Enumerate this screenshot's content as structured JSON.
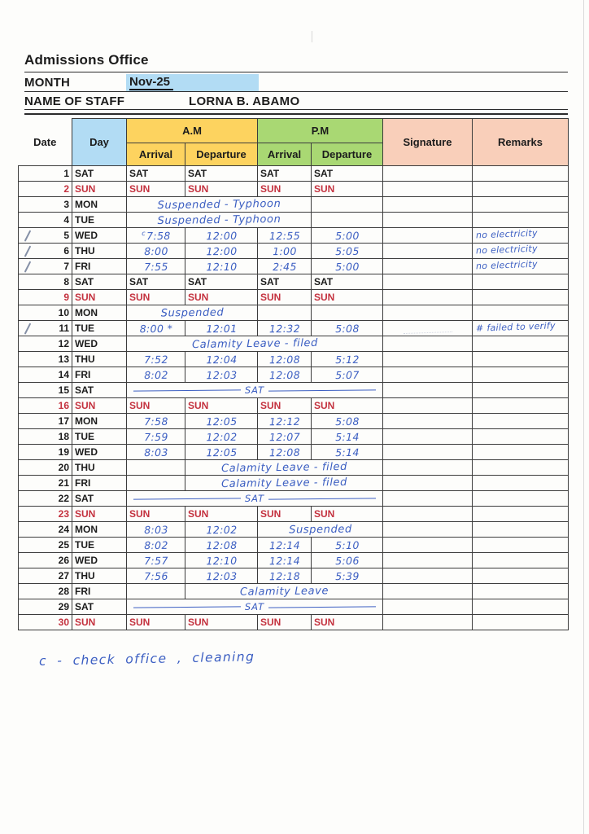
{
  "page": {
    "title": "Admissions Office",
    "month_label": "MONTH",
    "month_value": "Nov-25",
    "staff_label": "NAME OF STAFF",
    "staff_value": "LORNA B. ABAMO",
    "footer_note": "c - check office , cleaning"
  },
  "colors": {
    "highlight_blue": "#b2dcf4",
    "am_yellow": "#fdd35f",
    "pm_green": "#a9d873",
    "salmon": "#f9cfba",
    "sun_red": "#c4323f",
    "pen_blue": "#3b5ec2"
  },
  "table": {
    "headers": {
      "date": "Date",
      "day": "Day",
      "am": "A.M",
      "pm": "P.M",
      "arrival": "Arrival",
      "departure": "Departure",
      "signature": "Signature",
      "remarks": "Remarks"
    },
    "rows": [
      {
        "date": "1",
        "day": "SAT",
        "cells": [
          {
            "t": "SAT",
            "k": "printed"
          },
          {
            "t": "SAT",
            "k": "printed"
          },
          {
            "t": "SAT",
            "k": "printed"
          },
          {
            "t": "SAT",
            "k": "printed"
          }
        ]
      },
      {
        "date": "2",
        "day": "SUN",
        "weekend": true,
        "cells": [
          {
            "t": "SUN",
            "k": "printed"
          },
          {
            "t": "SUN",
            "k": "printed"
          },
          {
            "t": "SUN",
            "k": "printed"
          },
          {
            "t": "SUN",
            "k": "printed"
          }
        ]
      },
      {
        "date": "3",
        "day": "MON",
        "cells": [
          {
            "t": "Suspended - Typhoon",
            "k": "note",
            "span": 3
          },
          {
            "t": "",
            "k": "empty"
          }
        ]
      },
      {
        "date": "4",
        "day": "TUE",
        "cells": [
          {
            "t": "Suspended - Typhoon",
            "k": "note",
            "span": 3
          },
          {
            "t": "",
            "k": "empty"
          }
        ]
      },
      {
        "date": "5",
        "day": "WED",
        "check": true,
        "cells": [
          {
            "t": "7:58",
            "k": "hand",
            "pre": "c"
          },
          {
            "t": "12:00",
            "k": "hand"
          },
          {
            "t": "12:55",
            "k": "hand"
          },
          {
            "t": "5:00",
            "k": "hand"
          }
        ],
        "remark": "no electricity"
      },
      {
        "date": "6",
        "day": "THU",
        "check": true,
        "cells": [
          {
            "t": "8:00",
            "k": "hand"
          },
          {
            "t": "12:00",
            "k": "hand"
          },
          {
            "t": "1:00",
            "k": "hand"
          },
          {
            "t": "5:05",
            "k": "hand"
          }
        ],
        "remark": "no electricity"
      },
      {
        "date": "7",
        "day": "FRI",
        "check": true,
        "cells": [
          {
            "t": "7:55",
            "k": "hand"
          },
          {
            "t": "12:10",
            "k": "hand"
          },
          {
            "t": "2:45",
            "k": "hand"
          },
          {
            "t": "5:00",
            "k": "hand"
          }
        ],
        "remark": "no electricity"
      },
      {
        "date": "8",
        "day": "SAT",
        "cells": [
          {
            "t": "SAT",
            "k": "printed"
          },
          {
            "t": "SAT",
            "k": "printed"
          },
          {
            "t": "SAT",
            "k": "printed"
          },
          {
            "t": "SAT",
            "k": "printed"
          }
        ]
      },
      {
        "date": "9",
        "day": "SUN",
        "weekend": true,
        "cells": [
          {
            "t": "SUN",
            "k": "printed"
          },
          {
            "t": "SUN",
            "k": "printed"
          },
          {
            "t": "SUN",
            "k": "printed"
          },
          {
            "t": "SUN",
            "k": "printed"
          }
        ]
      },
      {
        "date": "10",
        "day": "MON",
        "cells": [
          {
            "t": "Suspended",
            "k": "note",
            "span": 2
          },
          {
            "t": "",
            "k": "empty"
          },
          {
            "t": "",
            "k": "empty"
          }
        ]
      },
      {
        "date": "11",
        "day": "TUE",
        "check": true,
        "sig_mark": true,
        "cells": [
          {
            "t": "8:00 *",
            "k": "hand"
          },
          {
            "t": "12:01",
            "k": "hand"
          },
          {
            "t": "12:32",
            "k": "hand"
          },
          {
            "t": "5:08",
            "k": "hand"
          }
        ],
        "remark": "# failed to verify"
      },
      {
        "date": "12",
        "day": "WED",
        "cells": [
          {
            "t": "Calamity Leave - filed",
            "k": "note",
            "span": 4
          }
        ]
      },
      {
        "date": "13",
        "day": "THU",
        "cells": [
          {
            "t": "7:52",
            "k": "hand"
          },
          {
            "t": "12:04",
            "k": "hand"
          },
          {
            "t": "12:08",
            "k": "hand"
          },
          {
            "t": "5:12",
            "k": "hand"
          }
        ]
      },
      {
        "date": "14",
        "day": "FRI",
        "cells": [
          {
            "t": "8:02",
            "k": "hand"
          },
          {
            "t": "12:03",
            "k": "hand"
          },
          {
            "t": "12:08",
            "k": "hand"
          },
          {
            "t": "5:07",
            "k": "hand"
          }
        ]
      },
      {
        "date": "15",
        "day": "SAT",
        "cells": [
          {
            "t": "SAT",
            "k": "satline",
            "span": 4
          }
        ]
      },
      {
        "date": "16",
        "day": "SUN",
        "weekend": true,
        "cells": [
          {
            "t": "SUN",
            "k": "printed"
          },
          {
            "t": "SUN",
            "k": "printed"
          },
          {
            "t": "SUN",
            "k": "printed"
          },
          {
            "t": "SUN",
            "k": "printed"
          }
        ]
      },
      {
        "date": "17",
        "day": "MON",
        "cells": [
          {
            "t": "7:58",
            "k": "hand"
          },
          {
            "t": "12:05",
            "k": "hand"
          },
          {
            "t": "12:12",
            "k": "hand"
          },
          {
            "t": "5:08",
            "k": "hand"
          }
        ]
      },
      {
        "date": "18",
        "day": "TUE",
        "cells": [
          {
            "t": "7:59",
            "k": "hand"
          },
          {
            "t": "12:02",
            "k": "hand"
          },
          {
            "t": "12:07",
            "k": "hand"
          },
          {
            "t": "5:14",
            "k": "hand"
          }
        ]
      },
      {
        "date": "19",
        "day": "WED",
        "cells": [
          {
            "t": "8:03",
            "k": "hand"
          },
          {
            "t": "12:05",
            "k": "hand"
          },
          {
            "t": "12:08",
            "k": "hand"
          },
          {
            "t": "5:14",
            "k": "hand"
          }
        ]
      },
      {
        "date": "20",
        "day": "THU",
        "cells": [
          {
            "t": "",
            "k": "empty"
          },
          {
            "t": "Calamity Leave - filed",
            "k": "note",
            "span": 3
          }
        ]
      },
      {
        "date": "21",
        "day": "FRI",
        "cells": [
          {
            "t": "",
            "k": "empty"
          },
          {
            "t": "Calamity Leave - filed",
            "k": "note",
            "span": 3
          }
        ]
      },
      {
        "date": "22",
        "day": "SAT",
        "cells": [
          {
            "t": "SAT",
            "k": "satline",
            "span": 4
          }
        ]
      },
      {
        "date": "23",
        "day": "SUN",
        "weekend": true,
        "cells": [
          {
            "t": "SUN",
            "k": "printed"
          },
          {
            "t": "SUN",
            "k": "printed"
          },
          {
            "t": "SUN",
            "k": "printed"
          },
          {
            "t": "SUN",
            "k": "printed"
          }
        ]
      },
      {
        "date": "24",
        "day": "MON",
        "cells": [
          {
            "t": "8:03",
            "k": "hand"
          },
          {
            "t": "12:02",
            "k": "hand"
          },
          {
            "t": "Suspended",
            "k": "note",
            "span": 2
          }
        ]
      },
      {
        "date": "25",
        "day": "TUE",
        "cells": [
          {
            "t": "8:02",
            "k": "hand"
          },
          {
            "t": "12:08",
            "k": "hand"
          },
          {
            "t": "12:14",
            "k": "hand"
          },
          {
            "t": "5:10",
            "k": "hand"
          }
        ]
      },
      {
        "date": "26",
        "day": "WED",
        "cells": [
          {
            "t": "7:57",
            "k": "hand"
          },
          {
            "t": "12:10",
            "k": "hand"
          },
          {
            "t": "12:14",
            "k": "hand"
          },
          {
            "t": "5:06",
            "k": "hand"
          }
        ]
      },
      {
        "date": "27",
        "day": "THU",
        "cells": [
          {
            "t": "7:56",
            "k": "hand"
          },
          {
            "t": "12:03",
            "k": "hand"
          },
          {
            "t": "12:18",
            "k": "hand"
          },
          {
            "t": "5:39",
            "k": "hand"
          }
        ]
      },
      {
        "date": "28",
        "day": "FRI",
        "cells": [
          {
            "t": "",
            "k": "empty"
          },
          {
            "t": "Calamity Leave",
            "k": "note",
            "span": 3
          }
        ]
      },
      {
        "date": "29",
        "day": "SAT",
        "cells": [
          {
            "t": "SAT",
            "k": "satline",
            "span": 4
          }
        ]
      },
      {
        "date": "30",
        "day": "SUN",
        "weekend": true,
        "cells": [
          {
            "t": "SUN",
            "k": "printed"
          },
          {
            "t": "SUN",
            "k": "printed"
          },
          {
            "t": "SUN",
            "k": "printed"
          },
          {
            "t": "SUN",
            "k": "printed"
          }
        ]
      }
    ]
  }
}
